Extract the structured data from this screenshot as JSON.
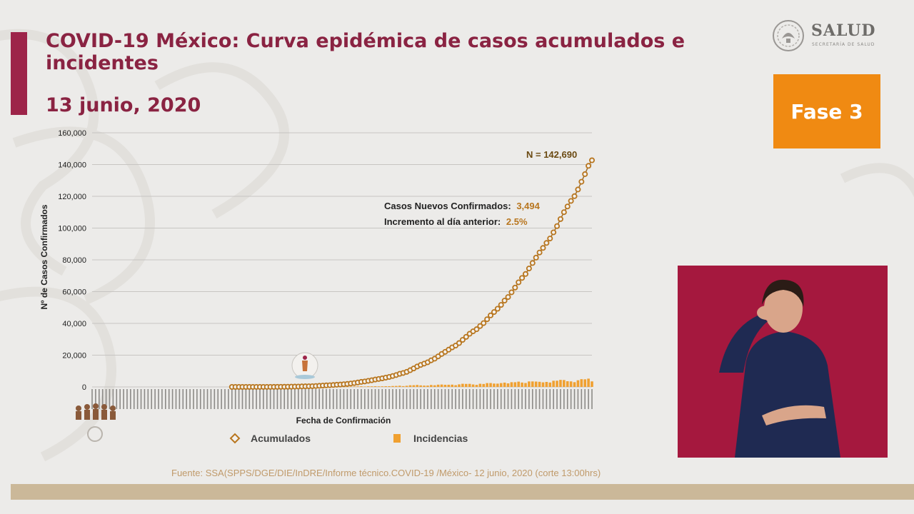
{
  "header": {
    "title": "COVID-19 México: Curva epidémica de casos acumulados e incidentes",
    "date": "13 junio, 2020"
  },
  "logo": {
    "name": "SALUD",
    "subtitle": "SECRETARÍA DE SALUD",
    "icon": "eagle-seal-icon"
  },
  "phase_badge": {
    "label": "Fase 3",
    "color": "#f08a12"
  },
  "annotations": {
    "total": "N = 142,690",
    "new_cases_label": "Casos Nuevos Confirmados:",
    "new_cases_value": "3,494",
    "increment_label": "Incremento al día anterior:",
    "increment_value": "2.5%"
  },
  "source": "Fuente: SSA(SPPS/DGE/DIE/InDRE/Informe técnico.COVID-19 /México- 12 junio, 2020 (corte 13:00hrs)",
  "colors": {
    "accent": "#9d2449",
    "cumulative": "#b8761f",
    "incidence": "#f0a030",
    "title": "#8a2342"
  },
  "chart_data": {
    "type": "line",
    "ylabel": "Nº de Casos Confirmados",
    "xlabel": "Fecha de Confirmación",
    "ylim": [
      0,
      160000
    ],
    "yticks": [
      "0",
      "20,000",
      "40,000",
      "60,000",
      "80,000",
      "100,000",
      "120,000",
      "140,000",
      "160,000"
    ],
    "grid": true,
    "legend_position": "bottom",
    "series": [
      {
        "name": "Acumulados",
        "kind": "line-marker",
        "values": [
          0,
          0,
          0,
          0,
          0,
          0,
          0,
          0,
          0,
          0,
          0,
          0,
          0,
          0,
          0,
          0,
          0,
          0,
          0,
          0,
          0,
          0,
          0,
          0,
          0,
          0,
          0,
          0,
          0,
          0,
          0,
          0,
          0,
          0,
          0,
          0,
          0,
          0,
          0,
          0,
          0,
          2,
          3,
          4,
          5,
          6,
          8,
          10,
          12,
          15,
          20,
          26,
          41,
          53,
          82,
          93,
          118,
          164,
          203,
          251,
          316,
          367,
          405,
          475,
          585,
          717,
          848,
          993,
          1094,
          1215,
          1378,
          1510,
          1688,
          1890,
          2143,
          2439,
          2785,
          3181,
          3441,
          3844,
          4219,
          4661,
          5014,
          5399,
          5847,
          6297,
          6875,
          7497,
          8261,
          8772,
          9501,
          10544,
          11633,
          12872,
          13842,
          14677,
          15529,
          16752,
          17799,
          19224,
          20739,
          22088,
          23471,
          24905,
          26025,
          27634,
          29616,
          31522,
          33460,
          35022,
          36327,
          38324,
          40186,
          42595,
          45032,
          47144,
          49219,
          51633,
          54346,
          56594,
          59567,
          62527,
          65856,
          68620,
          71105,
          74560,
          78023,
          81400,
          84627,
          87512,
          90664,
          93435,
          97326,
          101238,
          105680,
          110026,
          113619,
          117103,
          120102,
          124301,
          129184,
          133974,
          139196,
          142690
        ]
      },
      {
        "name": "Incidencias",
        "kind": "bar",
        "values": [
          0,
          0,
          0,
          0,
          0,
          0,
          0,
          0,
          0,
          0,
          0,
          0,
          0,
          0,
          0,
          0,
          0,
          0,
          0,
          0,
          0,
          0,
          0,
          0,
          0,
          0,
          0,
          0,
          0,
          0,
          0,
          0,
          0,
          0,
          0,
          0,
          0,
          0,
          0,
          0,
          0,
          2,
          1,
          1,
          1,
          1,
          2,
          2,
          2,
          3,
          5,
          6,
          15,
          12,
          29,
          11,
          25,
          46,
          39,
          48,
          65,
          51,
          38,
          70,
          110,
          132,
          131,
          145,
          101,
          121,
          163,
          132,
          178,
          202,
          253,
          296,
          346,
          396,
          260,
          403,
          375,
          442,
          353,
          385,
          448,
          450,
          578,
          622,
          764,
          511,
          729,
          1043,
          1089,
          1239,
          970,
          835,
          852,
          1223,
          1047,
          1425,
          1515,
          1349,
          1383,
          1434,
          1120,
          1609,
          1982,
          1906,
          1938,
          1562,
          1305,
          1997,
          1862,
          2409,
          2437,
          2112,
          2075,
          2414,
          2713,
          2248,
          2973,
          2960,
          3329,
          2764,
          2485,
          3455,
          3463,
          3377,
          3227,
          2885,
          3152,
          2771,
          3891,
          3912,
          4442,
          4346,
          3593,
          3484,
          2999,
          4199,
          4883,
          4790,
          5222,
          3494
        ]
      }
    ]
  }
}
